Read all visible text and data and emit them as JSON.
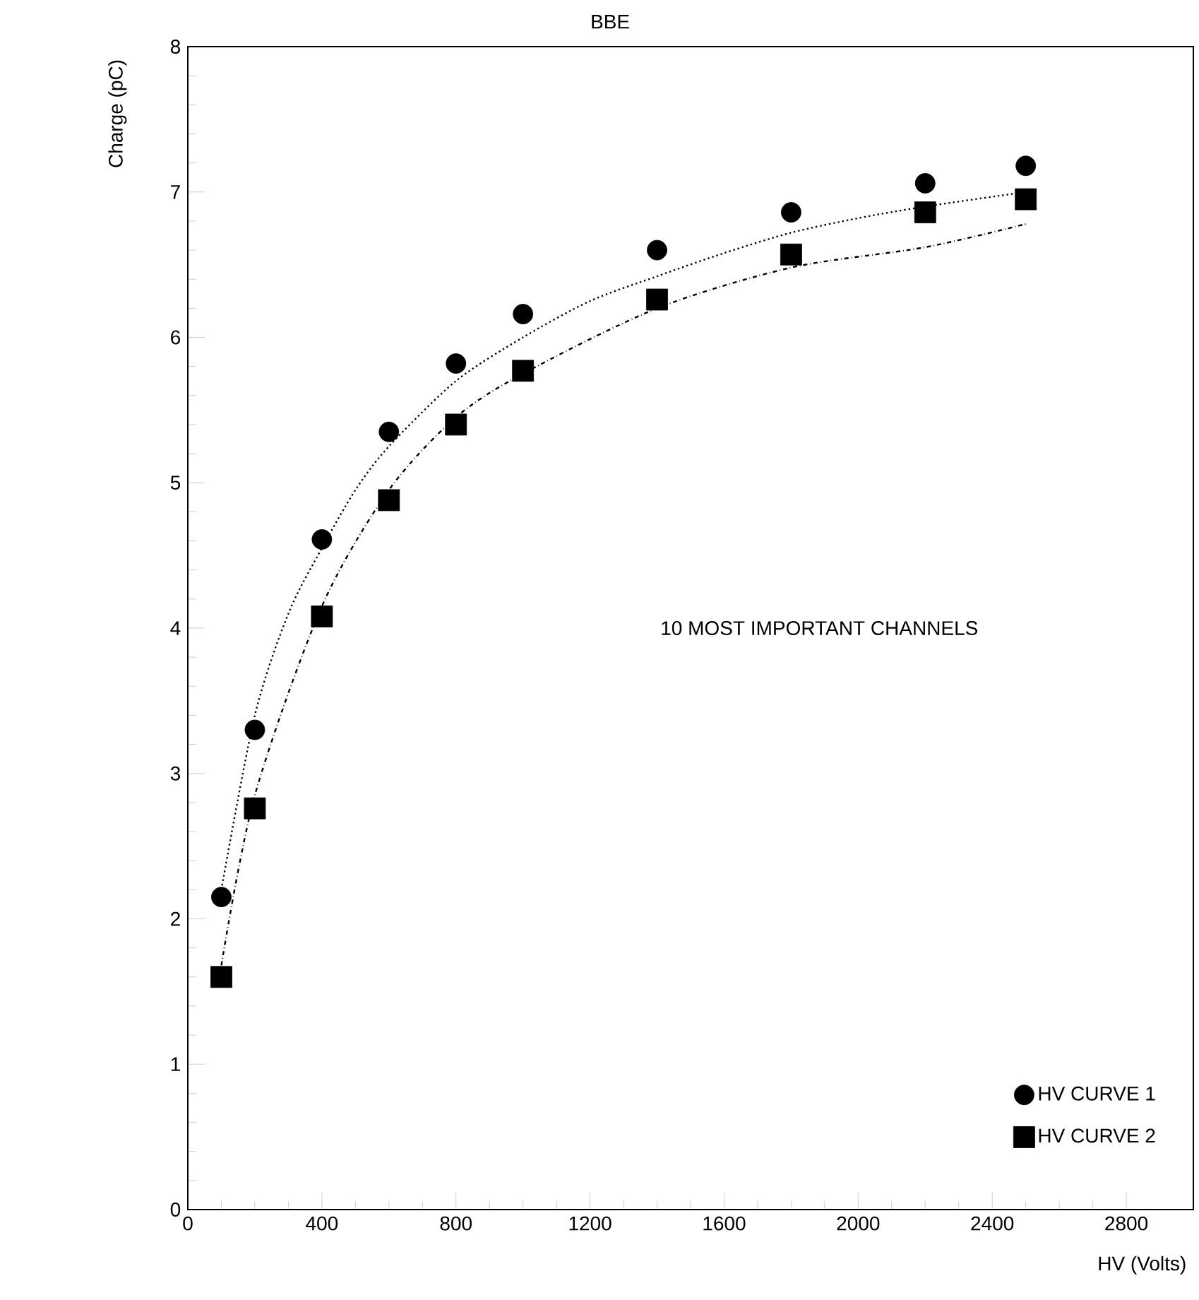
{
  "chart_data": {
    "type": "scatter",
    "title": "BBE",
    "xlabel": "HV (Volts)",
    "ylabel": "Charge (pC)",
    "annotations": [
      "10 MOST IMPORTANT CHANNELS"
    ],
    "xlim": [
      0,
      3000
    ],
    "ylim": [
      0,
      8
    ],
    "xticks": [
      0,
      400,
      800,
      1200,
      1600,
      2000,
      2400,
      2800
    ],
    "yticks": [
      0,
      1,
      2,
      3,
      4,
      5,
      6,
      7,
      8
    ],
    "grid": false,
    "legend": "bottom right",
    "series": [
      {
        "name": "HV CURVE 1",
        "marker": "circle",
        "color": "#000000",
        "x": [
          100,
          200,
          400,
          600,
          800,
          1000,
          1400,
          1800,
          2200,
          2500
        ],
        "values": [
          2.15,
          3.3,
          4.61,
          5.35,
          5.82,
          6.16,
          6.6,
          6.86,
          7.06,
          7.18
        ]
      },
      {
        "name": "HV CURVE 2",
        "marker": "square",
        "color": "#000000",
        "x": [
          100,
          200,
          400,
          600,
          800,
          1000,
          1400,
          1800,
          2200,
          2500
        ],
        "values": [
          1.6,
          2.76,
          4.08,
          4.88,
          5.4,
          5.77,
          6.26,
          6.57,
          6.86,
          6.95
        ]
      },
      {
        "type": "line",
        "marker": "none",
        "line_style": "dotted",
        "color": "#000000",
        "x": [
          100,
          200,
          300,
          400,
          500,
          600,
          800,
          1000,
          1200,
          1400,
          1600,
          1800,
          2000,
          2200,
          2500
        ],
        "values": [
          2.2,
          3.4,
          4.1,
          4.55,
          4.95,
          5.25,
          5.7,
          6.0,
          6.25,
          6.42,
          6.58,
          6.72,
          6.82,
          6.9,
          7.0
        ]
      },
      {
        "type": "line",
        "marker": "none",
        "line_style": "dashed",
        "color": "#000000",
        "x": [
          100,
          200,
          400,
          600,
          800,
          1000,
          1400,
          1800,
          2200,
          2500
        ],
        "values": [
          1.68,
          2.85,
          4.15,
          4.95,
          5.45,
          5.75,
          6.2,
          6.48,
          6.62,
          6.78
        ]
      }
    ]
  }
}
